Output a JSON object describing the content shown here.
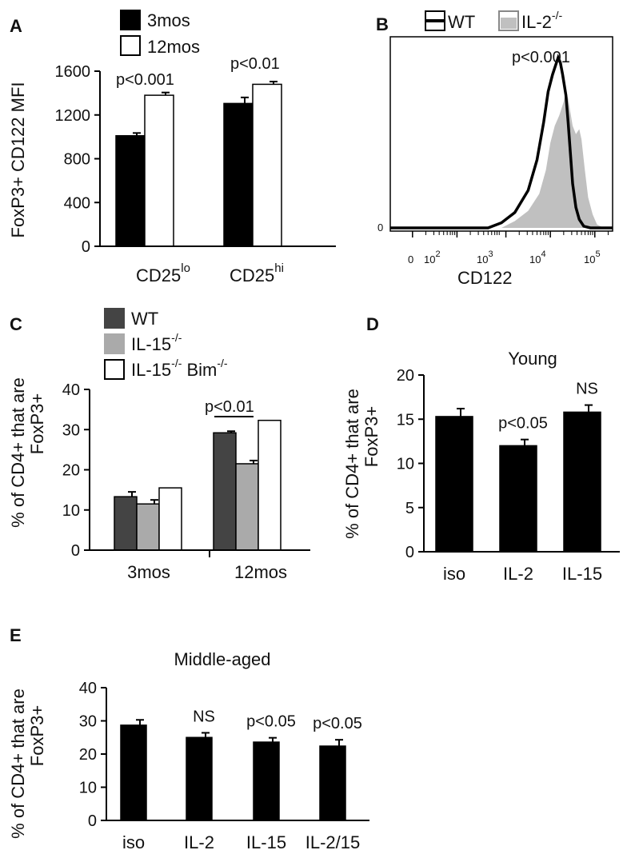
{
  "panels": {
    "A": {
      "letter": "A",
      "chart_data": {
        "type": "bar",
        "ylabel": "FoxP3+ CD122 MFI",
        "ylim": [
          0,
          1600
        ],
        "yticks": [
          "0",
          "400",
          "800",
          "1200",
          "1600"
        ],
        "yticks_values": [
          0,
          400,
          800,
          1200,
          1600
        ],
        "categories": [
          {
            "base": "CD25",
            "sup": "lo"
          },
          {
            "base": "CD25",
            "sup": "hi"
          }
        ],
        "series": [
          {
            "name": "3mos",
            "color": "#000000",
            "values": [
              1010,
              1305
            ],
            "errors": [
              25,
              55
            ]
          },
          {
            "name": "12mos",
            "color": "#ffffff",
            "values": [
              1380,
              1480
            ],
            "errors": [
              25,
              25
            ]
          }
        ],
        "annotations": [
          "p<0.001",
          "p<0.01"
        ],
        "legend_position": "top-left"
      }
    },
    "B": {
      "letter": "B",
      "chart_data": {
        "type": "area",
        "xlabel": "CD122",
        "xticks": [
          "0",
          "10",
          "10",
          "10",
          "10"
        ],
        "xtick_exponents": [
          "",
          "2",
          "3",
          "4",
          "5"
        ],
        "ytick": "0",
        "series": [
          {
            "name": "WT",
            "color": "#000000",
            "style": "outline",
            "points": [
              [
                0.44,
                0.0
              ],
              [
                0.5,
                0.03
              ],
              [
                0.56,
                0.09
              ],
              [
                0.62,
                0.22
              ],
              [
                0.66,
                0.4
              ],
              [
                0.69,
                0.62
              ],
              [
                0.71,
                0.8
              ],
              [
                0.73,
                0.9
              ],
              [
                0.745,
                0.96
              ],
              [
                0.755,
                1.0
              ],
              [
                0.765,
                0.97
              ],
              [
                0.775,
                0.9
              ],
              [
                0.79,
                0.78
              ],
              [
                0.8,
                0.62
              ],
              [
                0.81,
                0.44
              ],
              [
                0.82,
                0.26
              ],
              [
                0.835,
                0.12
              ],
              [
                0.85,
                0.05
              ],
              [
                0.87,
                0.01
              ],
              [
                0.9,
                0.0
              ]
            ]
          },
          {
            "name": "IL-2",
            "name_sup": "-/-",
            "color": "#c0c0c0",
            "style": "filled",
            "points": [
              [
                0.5,
                0.0
              ],
              [
                0.56,
                0.04
              ],
              [
                0.62,
                0.1
              ],
              [
                0.67,
                0.2
              ],
              [
                0.7,
                0.34
              ],
              [
                0.72,
                0.5
              ],
              [
                0.74,
                0.6
              ],
              [
                0.76,
                0.66
              ],
              [
                0.78,
                0.74
              ],
              [
                0.79,
                0.8
              ],
              [
                0.8,
                0.76
              ],
              [
                0.81,
                0.68
              ],
              [
                0.82,
                0.6
              ],
              [
                0.835,
                0.55
              ],
              [
                0.85,
                0.58
              ],
              [
                0.86,
                0.52
              ],
              [
                0.875,
                0.34
              ],
              [
                0.89,
                0.18
              ],
              [
                0.91,
                0.08
              ],
              [
                0.93,
                0.02
              ],
              [
                0.96,
                0.0
              ]
            ]
          }
        ],
        "annotations": [
          "p<0.001"
        ],
        "legend_position": "top"
      }
    },
    "C": {
      "letter": "C",
      "chart_data": {
        "type": "bar",
        "ylabel_lines": [
          "% of CD4+ that are",
          "FoxP3+"
        ],
        "ylim": [
          0,
          40
        ],
        "yticks": [
          "0",
          "10",
          "20",
          "30",
          "40"
        ],
        "yticks_values": [
          0,
          10,
          20,
          30,
          40
        ],
        "categories": [
          "3mos",
          "12mos"
        ],
        "series": [
          {
            "name": "WT",
            "color": "#444444",
            "values": [
              13.3,
              29.2
            ],
            "errors": [
              1.2,
              0.4
            ]
          },
          {
            "name": "IL-15",
            "name_sup": "-/-",
            "color": "#aaaaaa",
            "values": [
              11.5,
              21.5
            ],
            "errors": [
              1.0,
              0.8
            ]
          },
          {
            "name": "IL-15",
            "name_sup": "-/-",
            "name_suffix": " Bim",
            "name_suffix_sup": "-/-",
            "color": "#ffffff",
            "values": [
              15.5,
              32.3
            ],
            "errors": [
              0,
              0
            ]
          }
        ],
        "annotations": [
          "p<0.01"
        ],
        "legend_position": "top-left"
      }
    },
    "D": {
      "letter": "D",
      "chart_data": {
        "type": "bar",
        "title": "Young",
        "ylabel_lines": [
          "% of CD4+ that are",
          "FoxP3+"
        ],
        "ylim": [
          0,
          20
        ],
        "yticks": [
          "0",
          "5",
          "10",
          "15",
          "20"
        ],
        "yticks_values": [
          0,
          5,
          10,
          15,
          20
        ],
        "categories": [
          "iso",
          "IL-2",
          "IL-15"
        ],
        "values": [
          15.3,
          12.0,
          15.8
        ],
        "errors": [
          0.9,
          0.7,
          0.8
        ],
        "annotations": [
          "",
          "p<0.05",
          "NS"
        ]
      }
    },
    "E": {
      "letter": "E",
      "chart_data": {
        "type": "bar",
        "title": "Middle-aged",
        "ylabel_lines": [
          "% of CD4+ that are",
          "FoxP3+"
        ],
        "ylim": [
          0,
          40
        ],
        "yticks": [
          "0",
          "10",
          "20",
          "30",
          "40"
        ],
        "yticks_values": [
          0,
          10,
          20,
          30,
          40
        ],
        "categories": [
          "iso",
          "IL-2",
          "IL-15",
          "IL-2/15"
        ],
        "values": [
          28.7,
          25.0,
          23.6,
          22.4
        ],
        "errors": [
          1.6,
          1.4,
          1.3,
          1.9
        ],
        "annotations": [
          "",
          "NS",
          "p<0.05",
          "p<0.05"
        ]
      }
    }
  }
}
